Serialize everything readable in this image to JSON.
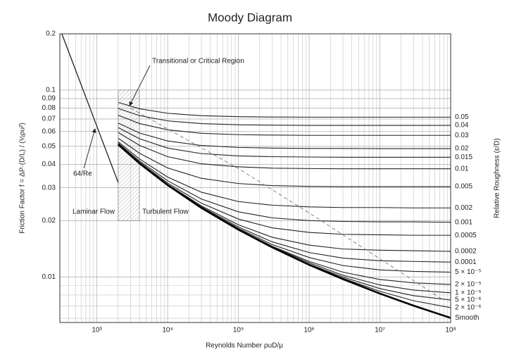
{
  "chart_data": {
    "type": "line",
    "title": "Moody Diagram",
    "x_label": "Reynolds Number ρuD/μ",
    "y_label": "Friction Factor f = ΔP·(D/L) / (½ρu²)",
    "y2_label": "Relative Roughness (ε/D)",
    "log_x": true,
    "log_y": true,
    "grid": true,
    "xlim": [
      300,
      100000000
    ],
    "ylim": [
      0.0057,
      0.2
    ],
    "xticks": [
      {
        "value": 1000,
        "label": "10³"
      },
      {
        "value": 10000,
        "label": "10⁴"
      },
      {
        "value": 100000,
        "label": "10⁵"
      },
      {
        "value": 1000000,
        "label": "10⁶"
      },
      {
        "value": 10000000,
        "label": "10⁷"
      },
      {
        "value": 100000000,
        "label": "10⁸"
      }
    ],
    "xminor": [
      400,
      500,
      600,
      700,
      800,
      900,
      2000,
      3000,
      4000,
      5000,
      6000,
      7000,
      8000,
      9000,
      20000,
      30000,
      40000,
      50000,
      60000,
      70000,
      80000,
      90000,
      200000,
      300000,
      400000,
      500000,
      600000,
      700000,
      800000,
      900000,
      2000000,
      3000000,
      4000000,
      5000000,
      6000000,
      7000000,
      8000000,
      9000000,
      20000000,
      30000000,
      40000000,
      50000000,
      60000000,
      70000000,
      80000000,
      90000000
    ],
    "yticks": [
      0.2,
      0.1,
      0.09,
      0.08,
      0.07,
      0.06,
      0.05,
      0.04,
      0.03,
      0.02,
      0.01
    ],
    "yminor": [
      0.009,
      0.008,
      0.007,
      0.006
    ],
    "x": [
      2000,
      4000,
      10000,
      30000,
      100000,
      300000,
      1000000,
      3000000,
      10000000,
      30000000,
      100000000
    ],
    "series": [
      {
        "name": "0.05",
        "color": "#222222",
        "values": [
          0.0859,
          0.0794,
          0.0751,
          0.0729,
          0.072,
          0.0717,
          0.0716,
          0.0716,
          0.0716,
          0.0716,
          0.0716
        ]
      },
      {
        "name": "0.04",
        "color": "#222222",
        "values": [
          0.0797,
          0.073,
          0.0684,
          0.0661,
          0.0652,
          0.0649,
          0.0647,
          0.0647,
          0.0647,
          0.0647,
          0.0647
        ]
      },
      {
        "name": "0.03",
        "color": "#222222",
        "values": [
          0.0733,
          0.0662,
          0.0613,
          0.0587,
          0.0577,
          0.0574,
          0.0572,
          0.0572,
          0.0572,
          0.0572,
          0.0572
        ]
      },
      {
        "name": "0.02",
        "color": "#222222",
        "values": [
          0.0666,
          0.0589,
          0.0534,
          0.0505,
          0.0493,
          0.0489,
          0.0487,
          0.0487,
          0.0486,
          0.0486,
          0.0486
        ]
      },
      {
        "name": "0.015",
        "color": "#222222",
        "values": [
          0.063,
          0.0549,
          0.0489,
          0.0457,
          0.0444,
          0.044,
          0.0438,
          0.0437,
          0.0437,
          0.0437,
          0.0437
        ]
      },
      {
        "name": "0.01",
        "color": "#222222",
        "values": [
          0.0593,
          0.0506,
          0.044,
          0.0403,
          0.0388,
          0.0382,
          0.038,
          0.0379,
          0.0379,
          0.0379,
          0.0379
        ]
      },
      {
        "name": "0.005",
        "color": "#222222",
        "values": [
          0.0553,
          0.0459,
          0.0383,
          0.0337,
          0.0316,
          0.0308,
          0.0305,
          0.0304,
          0.0304,
          0.0304,
          0.0304
        ]
      },
      {
        "name": "0.002",
        "color": "#222222",
        "values": [
          0.0528,
          0.0428,
          0.0342,
          0.0284,
          0.0253,
          0.0242,
          0.0237,
          0.0235,
          0.0235,
          0.0234,
          0.0234
        ]
      },
      {
        "name": "0.001",
        "color": "#222222",
        "values": [
          0.052,
          0.0417,
          0.0327,
          0.0261,
          0.0223,
          0.0207,
          0.02,
          0.0198,
          0.0197,
          0.0197,
          0.0196
        ]
      },
      {
        "name": "0.0005",
        "color": "#222222",
        "values": [
          0.0515,
          0.0411,
          0.0318,
          0.0248,
          0.0204,
          0.0183,
          0.0173,
          0.0169,
          0.0168,
          0.0167,
          0.0167
        ]
      },
      {
        "name": "0.0002",
        "color": "#222222",
        "values": [
          0.0513,
          0.0408,
          0.0313,
          0.024,
          0.019,
          0.0163,
          0.0148,
          0.0141,
          0.0139,
          0.0138,
          0.0137
        ]
      },
      {
        "name": "0.0001",
        "color": "#222222",
        "values": [
          0.0512,
          0.0407,
          0.0311,
          0.0237,
          0.0185,
          0.0154,
          0.0135,
          0.0126,
          0.0122,
          0.0121,
          0.012
        ]
      },
      {
        "name": "5 × 10⁻⁵",
        "color": "#222222",
        "values": [
          0.0511,
          0.0406,
          0.031,
          0.0235,
          0.0182,
          0.0149,
          0.0127,
          0.0115,
          0.0109,
          0.0107,
          0.0106
        ]
      },
      {
        "name": "2 × 10⁻⁵",
        "color": "#222222",
        "values": [
          0.0511,
          0.0405,
          0.031,
          0.0234,
          0.018,
          0.0146,
          0.0121,
          0.0106,
          0.00968,
          0.00929,
          0.00911
        ]
      },
      {
        "name": "1 × 10⁻⁵",
        "color": "#222222",
        "values": [
          0.0511,
          0.0405,
          0.031,
          0.0234,
          0.0179,
          0.0145,
          0.0119,
          0.0102,
          0.00906,
          0.0085,
          0.00822
        ]
      },
      {
        "name": "5 × 10⁻⁶",
        "color": "#222222",
        "values": [
          0.0511,
          0.0405,
          0.031,
          0.0234,
          0.0179,
          0.0144,
          0.0117,
          0.00998,
          0.00866,
          0.00793,
          0.00752
        ]
      },
      {
        "name": "2 × 10⁻⁶",
        "color": "#222222",
        "values": [
          0.0511,
          0.0405,
          0.031,
          0.0234,
          0.0179,
          0.0144,
          0.0117,
          0.00983,
          0.00837,
          0.00745,
          0.00684
        ]
      },
      {
        "name": "Smooth",
        "color": "#000000",
        "values": [
          0.0511,
          0.0405,
          0.031,
          0.0234,
          0.0179,
          0.0144,
          0.0116,
          0.00973,
          0.00814,
          0.00701,
          0.00603
        ]
      }
    ],
    "laminar": {
      "x": [
        320,
        2000
      ],
      "values": [
        0.2,
        0.032
      ],
      "color": "#222222"
    },
    "complete_turbulence": {
      "x": [
        3000,
        100000,
        1000000,
        80000000
      ],
      "values": [
        0.08,
        0.038,
        0.022,
        0.0075
      ],
      "color": "#777777"
    },
    "transition_region": {
      "x": [
        2000,
        4000
      ],
      "y": [
        0.02,
        0.1
      ]
    },
    "annotations": [
      "Transitional or Critical Region",
      "64/Re",
      "Laminar Flow",
      "Turbulent Flow"
    ]
  }
}
